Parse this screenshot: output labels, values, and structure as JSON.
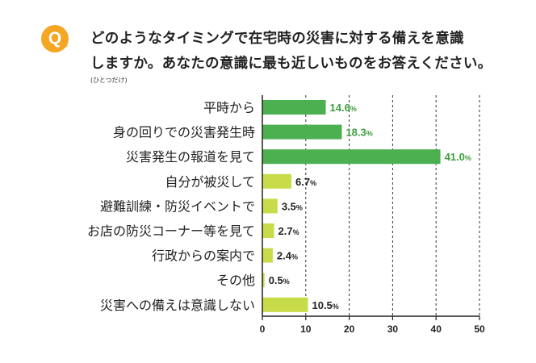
{
  "question": {
    "badge": "Q",
    "line1": "どのようなタイミングで在宅時の災害に対する備えを意識",
    "line2": "しますか。あなたの意識に最も近しいものをお答えください。",
    "note": "(ひとつだけ)"
  },
  "chart_data": {
    "type": "bar",
    "orientation": "horizontal",
    "categories": [
      "平時から",
      "身の回りでの災害発生時",
      "災害発生の報道を見て",
      "自分が被災して",
      "避難訓練・防災イベントで",
      "お店の防災コーナー等を見て",
      "行政からの案内で",
      "その他",
      "災害への備えは意識しない"
    ],
    "values": [
      14.6,
      18.3,
      41.0,
      6.7,
      3.5,
      2.7,
      2.4,
      0.5,
      10.5
    ],
    "value_labels": [
      "14.6",
      "18.3",
      "41.0",
      "6.7",
      "3.5",
      "2.7",
      "2.4",
      "0.5",
      "10.5"
    ],
    "unit": "%",
    "bar_colors": [
      "#4caf50",
      "#4caf50",
      "#4caf50",
      "#c8dc4a",
      "#c8dc4a",
      "#c8dc4a",
      "#c8dc4a",
      "#c8dc4a",
      "#c8dc4a"
    ],
    "label_colors": [
      "#3f9e3f",
      "#3f9e3f",
      "#3f9e3f",
      "#222222",
      "#222222",
      "#222222",
      "#222222",
      "#222222",
      "#222222"
    ],
    "xlim": [
      0,
      50
    ],
    "xticks": [
      0,
      10,
      20,
      30,
      40,
      50
    ],
    "grid": "dashed-vertical"
  }
}
